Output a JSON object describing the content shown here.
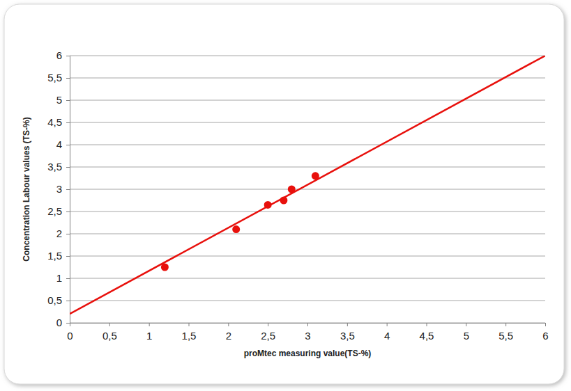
{
  "chart_data": {
    "type": "scatter",
    "x_label": "proMtec measuring value(TS-%)",
    "y_label": "Concentration Labour values (TS-%)",
    "xlim": [
      0,
      6
    ],
    "ylim": [
      0,
      6
    ],
    "xticks": [
      0,
      {
        "value": 0.5,
        "label": "0,5"
      },
      1,
      {
        "value": 1.5,
        "label": "1,5"
      },
      2,
      {
        "value": 2.5,
        "label": "2,5"
      },
      3,
      {
        "value": 3.5,
        "label": "3,5"
      },
      4,
      {
        "value": 4.5,
        "label": "4,5"
      },
      5,
      {
        "value": 5.5,
        "label": "5,5"
      },
      6
    ],
    "yticks": [
      0,
      {
        "value": 0.5,
        "label": "0,5"
      },
      1,
      {
        "value": 1.5,
        "label": "1,5"
      },
      2,
      {
        "value": 2.5,
        "label": "2,5"
      },
      3,
      {
        "value": 3.5,
        "label": "3,5"
      },
      4,
      {
        "value": 4.5,
        "label": "4,5"
      },
      5,
      {
        "value": 5.5,
        "label": "5,5"
      },
      6
    ],
    "grid": true,
    "series": [
      {
        "type": "scatter",
        "color": "#e8100c",
        "marker": "circle",
        "x": [
          1.2,
          2.1,
          2.5,
          2.7,
          2.8,
          3.1
        ],
        "values": [
          1.25,
          2.1,
          2.65,
          2.75,
          3.0,
          3.3
        ]
      },
      {
        "type": "line",
        "color": "#e8100c",
        "line_style": "solid",
        "x": [
          0,
          6
        ],
        "values": [
          0.2,
          6
        ]
      }
    ]
  }
}
